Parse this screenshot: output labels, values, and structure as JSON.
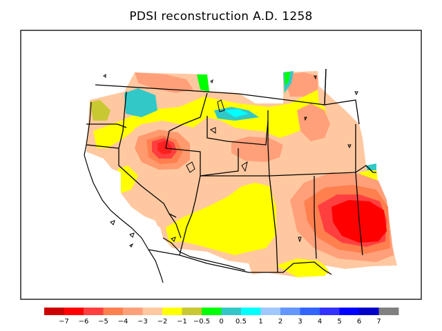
{
  "title": "PDSI reconstruction A.D. 1258",
  "legend": {
    "colors": [
      "#cc0000",
      "#ff0000",
      "#ff3f3f",
      "#ff7f4f",
      "#ffa07a",
      "#ffc8a0",
      "#ffff00",
      "#c8c832",
      "#00ff00",
      "#32c8c8",
      "#00ffff",
      "#a0c8ff",
      "#6496ff",
      "#3264ff",
      "#3232ff",
      "#0000ff",
      "#0000c8",
      "#808080"
    ],
    "labels": [
      "−7",
      "−6",
      "−5",
      "−4",
      "−3",
      "−2",
      "−1",
      "−0.5",
      "0",
      "0.5",
      "1",
      "2",
      "3",
      "4",
      "5",
      "6",
      "7"
    ]
  }
}
